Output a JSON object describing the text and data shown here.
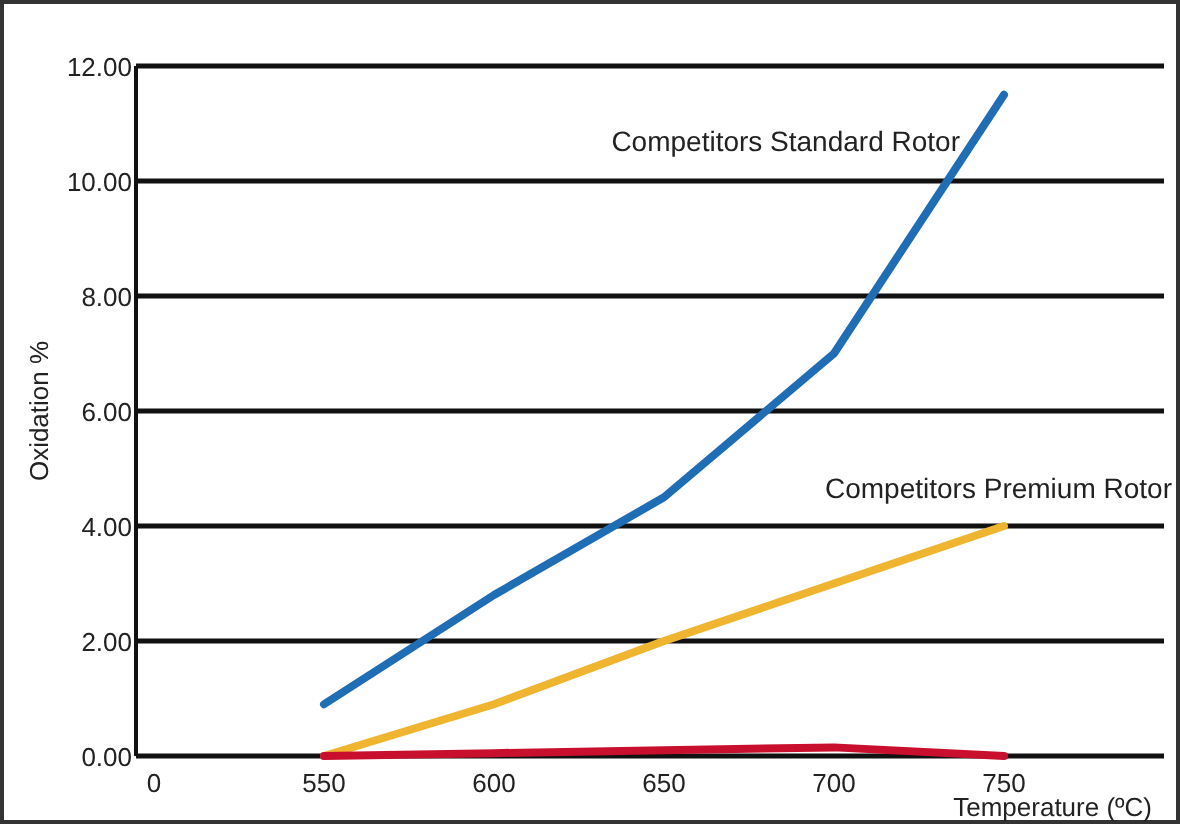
{
  "chart_data": {
    "type": "line",
    "xlabel": "Temperature (ºC)",
    "ylabel": "Oxidation %",
    "categories": [
      "0",
      "550",
      "600",
      "650",
      "700",
      "750"
    ],
    "series": [
      {
        "name": "Competitors Standard Rotor",
        "color": "#1f6db5",
        "values": [
          null,
          0.9,
          2.8,
          4.5,
          7.0,
          11.5
        ]
      },
      {
        "name": "Competitors Premium Rotor",
        "color": "#f0b530",
        "values": [
          null,
          0,
          0.9,
          2.0,
          3.0,
          4.0
        ]
      },
      {
        "color": "#c8102e",
        "values": [
          null,
          0,
          0.05,
          0.1,
          0.15,
          0
        ]
      }
    ],
    "ylim": [
      0,
      12
    ],
    "yticks": [
      {
        "value": 0,
        "label": "0.00"
      },
      {
        "value": 2,
        "label": "2.00"
      },
      {
        "value": 4,
        "label": "4.00"
      },
      {
        "value": 6,
        "label": "6.00"
      },
      {
        "value": 8,
        "label": "8.00"
      },
      {
        "value": 10,
        "label": "10.00"
      },
      {
        "value": 12,
        "label": "12.00"
      }
    ],
    "grid": "y",
    "marker": "none",
    "line_style": "solid"
  }
}
